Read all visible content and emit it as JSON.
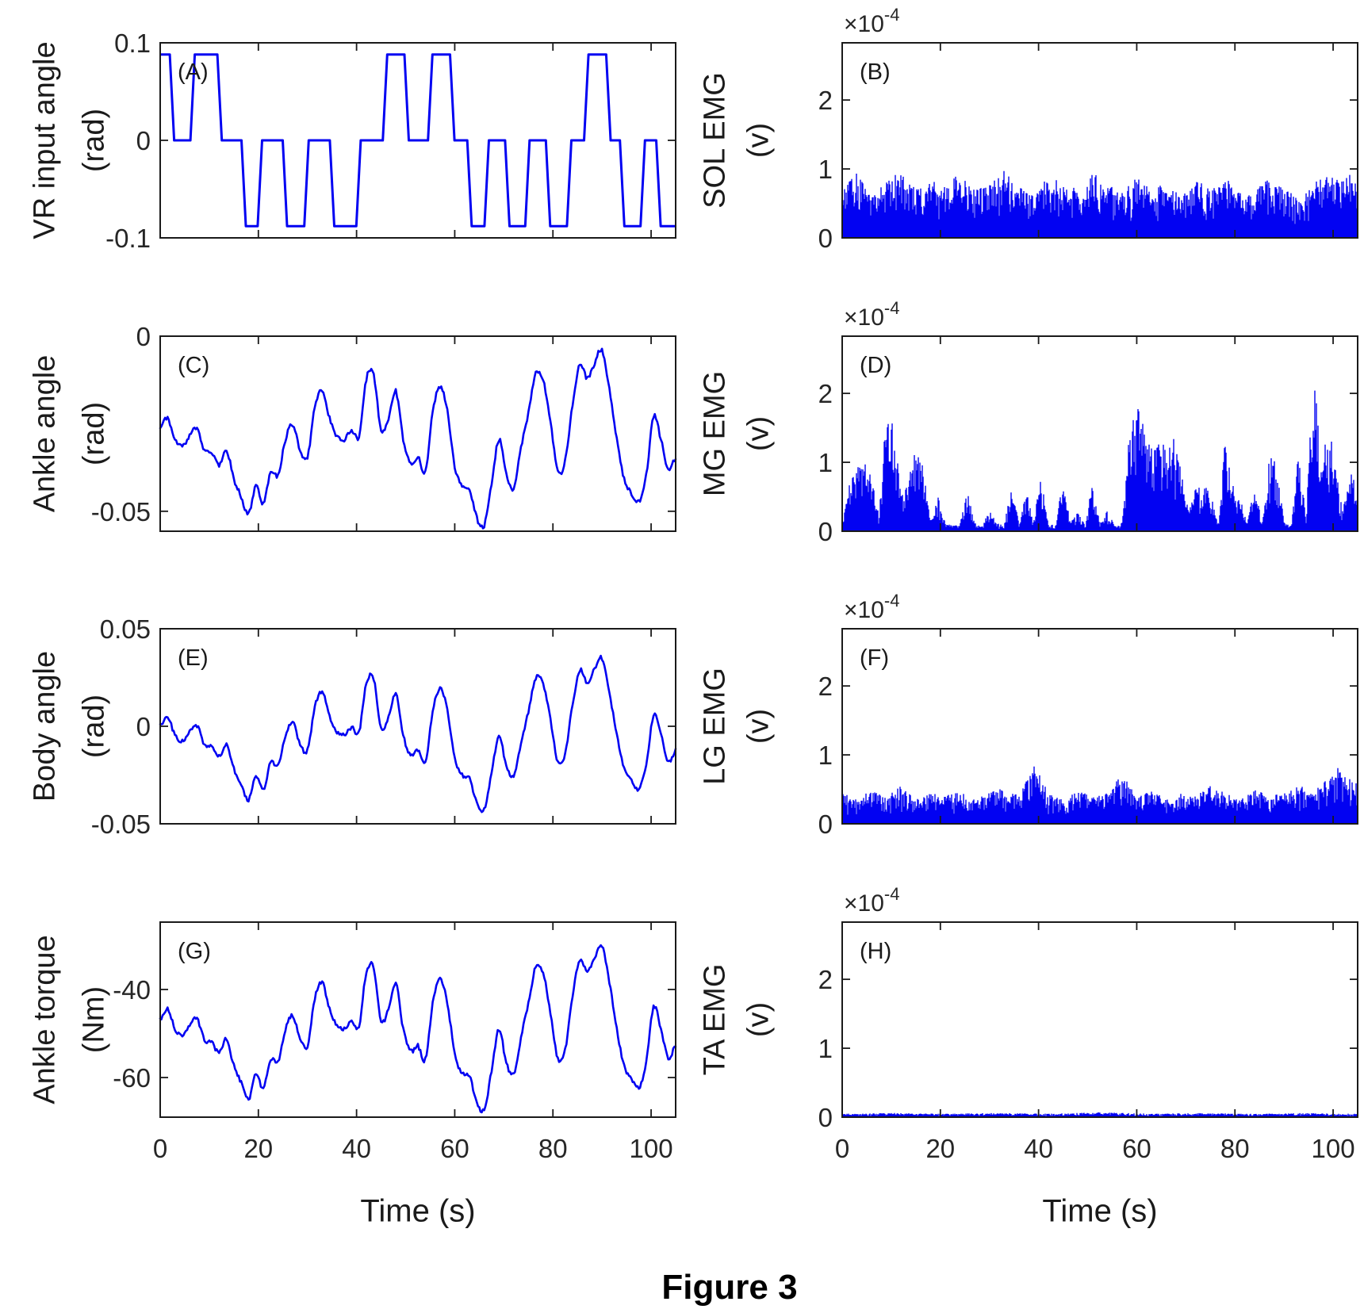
{
  "figure_caption": "Figure 3",
  "colors": {
    "signal": "#0202f2",
    "axis": "#1a1a1a",
    "tick_text": "#262626"
  },
  "chart_data": {
    "type": "line",
    "title": "",
    "xlabel": "Time (s)",
    "xlim": [
      0,
      105
    ],
    "xticks": [
      0,
      20,
      40,
      60,
      80,
      100
    ],
    "grid": false,
    "legend": "none",
    "sway_normalized_t_step_s": 1.5,
    "sway_normalized": [
      0.56,
      0.62,
      0.5,
      0.46,
      0.52,
      0.56,
      0.44,
      0.42,
      0.36,
      0.44,
      0.28,
      0.18,
      0.08,
      0.24,
      0.14,
      0.32,
      0.3,
      0.5,
      0.58,
      0.44,
      0.4,
      0.68,
      0.78,
      0.62,
      0.52,
      0.5,
      0.55,
      0.52,
      0.84,
      0.86,
      0.55,
      0.62,
      0.77,
      0.5,
      0.37,
      0.4,
      0.32,
      0.65,
      0.8,
      0.66,
      0.35,
      0.24,
      0.22,
      0.06,
      0.02,
      0.25,
      0.5,
      0.3,
      0.23,
      0.45,
      0.65,
      0.87,
      0.83,
      0.6,
      0.32,
      0.38,
      0.7,
      0.92,
      0.84,
      0.93,
      1.0,
      0.78,
      0.5,
      0.28,
      0.2,
      0.15,
      0.3,
      0.63,
      0.5,
      0.33,
      0.4
    ],
    "panels": [
      {
        "key": "A",
        "label": "(A)",
        "ylabel1": "VR input angle",
        "ylabel2": "(rad)",
        "kind": "step",
        "ylim": [
          -0.1,
          0.1
        ],
        "yticks": [
          {
            "v": 0.1,
            "label": "0.1"
          },
          {
            "v": 0,
            "label": "0"
          },
          {
            "v": -0.1,
            "label": "-0.1"
          }
        ],
        "step_points": [
          [
            0,
            0.088
          ],
          [
            2.4,
            0
          ],
          [
            6.6,
            0.088
          ],
          [
            12.1,
            0
          ],
          [
            17,
            -0.088
          ],
          [
            20.3,
            0
          ],
          [
            25.4,
            -0.088
          ],
          [
            29.8,
            0
          ],
          [
            35,
            -0.088
          ],
          [
            40.4,
            0
          ],
          [
            45.8,
            0.088
          ],
          [
            50.2,
            0
          ],
          [
            55,
            0.088
          ],
          [
            59.5,
            0
          ],
          [
            63,
            -0.088
          ],
          [
            66.5,
            0
          ],
          [
            70.7,
            -0.088
          ],
          [
            74.8,
            0
          ],
          [
            79,
            -0.088
          ],
          [
            83.3,
            0
          ],
          [
            86.8,
            0.088
          ],
          [
            91.3,
            0
          ],
          [
            94.1,
            -0.088
          ],
          [
            98.3,
            0
          ],
          [
            101.5,
            -0.088
          ]
        ]
      },
      {
        "key": "B",
        "label": "(B)",
        "ylabel1": "SOL EMG",
        "ylabel2": "(v)",
        "kind": "emg",
        "exp_base": "×10",
        "exp_power": "-4",
        "unit_scale": "1e-4",
        "ylim": [
          0,
          2.83
        ],
        "yticks": [
          {
            "v": 2,
            "label": "2"
          },
          {
            "v": 1,
            "label": "1"
          },
          {
            "v": 0,
            "label": "0"
          }
        ],
        "envelope": [
          0.7,
          0.95,
          0.65,
          0.8,
          1.0,
          0.7,
          0.85,
          0.75,
          0.95,
          0.7,
          0.8,
          1.0,
          0.75,
          0.6,
          0.9,
          0.8,
          0.7,
          0.95,
          0.8,
          0.65,
          0.9,
          0.7,
          0.8,
          0.6,
          0.85,
          0.75,
          0.9,
          0.65,
          0.75,
          0.85,
          0.7,
          0.6,
          0.8,
          0.9,
          0.85,
          1.0
        ]
      },
      {
        "key": "C",
        "label": "(C)",
        "ylabel1": "Ankle angle",
        "ylabel2": "(rad)",
        "kind": "line",
        "ylim": [
          -0.0557,
          0
        ],
        "yticks": [
          {
            "v": 0,
            "label": "0"
          },
          {
            "v": -0.05,
            "label": "-0.05"
          }
        ],
        "data_min": -0.055,
        "data_max": -0.004
      },
      {
        "key": "D",
        "label": "(D)",
        "ylabel1": "MG EMG",
        "ylabel2": "(v)",
        "kind": "emg",
        "exp_base": "×10",
        "exp_power": "-4",
        "unit_scale": "1e-4",
        "ylim": [
          0,
          2.83
        ],
        "yticks": [
          {
            "v": 2,
            "label": "2"
          },
          {
            "v": 1,
            "label": "1"
          },
          {
            "v": 0,
            "label": "0"
          }
        ],
        "envelope": [
          0.12,
          0.7,
          0.95,
          1.0,
          0.8,
          0.25,
          1.8,
          1.7,
          0.5,
          0.75,
          1.25,
          1.0,
          0.15,
          0.5,
          0.12,
          0.08,
          0.1,
          0.6,
          0.12,
          0.08,
          0.3,
          0.12,
          0.08,
          0.75,
          0.1,
          0.6,
          0.12,
          0.85,
          0.1,
          0.1,
          0.8,
          0.12,
          0.3,
          0.08,
          0.75,
          0.12,
          0.3,
          0.08,
          0.12,
          1.45,
          1.87,
          1.5,
          1.4,
          1.36,
          1.3,
          1.35,
          0.9,
          0.3,
          0.62,
          0.65,
          0.6,
          0.1,
          1.34,
          0.75,
          0.5,
          0.1,
          0.7,
          0.12,
          1.1,
          1.05,
          0.12,
          0.08,
          1.2,
          0.15,
          2.65,
          1.0,
          1.65,
          0.9,
          0.3,
          0.9,
          0.75
        ]
      },
      {
        "key": "E",
        "label": "(E)",
        "ylabel1": "Body angle",
        "ylabel2": "(rad)",
        "kind": "line",
        "ylim": [
          -0.05,
          0.05
        ],
        "yticks": [
          {
            "v": 0.05,
            "label": "0.05"
          },
          {
            "v": 0,
            "label": "0"
          },
          {
            "v": -0.05,
            "label": "-0.05"
          }
        ],
        "data_min": -0.044,
        "data_max": 0.035
      },
      {
        "key": "F",
        "label": "(F)",
        "ylabel1": "LG EMG",
        "ylabel2": "(v)",
        "kind": "emg",
        "exp_base": "×10",
        "exp_power": "-4",
        "unit_scale": "1e-4",
        "ylim": [
          0,
          2.83
        ],
        "yticks": [
          {
            "v": 2,
            "label": "2"
          },
          {
            "v": 1,
            "label": "1"
          },
          {
            "v": 0,
            "label": "0"
          }
        ],
        "envelope": [
          0.45,
          0.35,
          0.5,
          0.4,
          0.55,
          0.35,
          0.45,
          0.4,
          0.5,
          0.35,
          0.45,
          0.55,
          0.4,
          0.95,
          0.45,
          0.35,
          0.5,
          0.4,
          0.45,
          0.75,
          0.4,
          0.5,
          0.35,
          0.45,
          0.4,
          0.55,
          0.45,
          0.35,
          0.5,
          0.4,
          0.45,
          0.55,
          0.5,
          0.65,
          0.9,
          0.55
        ]
      },
      {
        "key": "G",
        "label": "(G)",
        "ylabel1": "Ankle torque",
        "ylabel2": "(Nm)",
        "kind": "line",
        "ylim": [
          -69,
          -24.7
        ],
        "yticks": [
          {
            "v": -40,
            "label": "-40"
          },
          {
            "v": -60,
            "label": "-60"
          }
        ],
        "data_min": -68,
        "data_max": -30
      },
      {
        "key": "H",
        "label": "(H)",
        "ylabel1": "TA EMG",
        "ylabel2": "(v)",
        "kind": "emg",
        "exp_base": "×10",
        "exp_power": "-4",
        "unit_scale": "1e-4",
        "ylim": [
          0,
          2.83
        ],
        "yticks": [
          {
            "v": 2,
            "label": "2"
          },
          {
            "v": 1,
            "label": "1"
          },
          {
            "v": 0,
            "label": "0"
          }
        ],
        "envelope": [
          0.05,
          0.06,
          0.05,
          0.06,
          0.05,
          0.07,
          0.05,
          0.06,
          0.05,
          0.06,
          0.05
        ]
      }
    ]
  }
}
